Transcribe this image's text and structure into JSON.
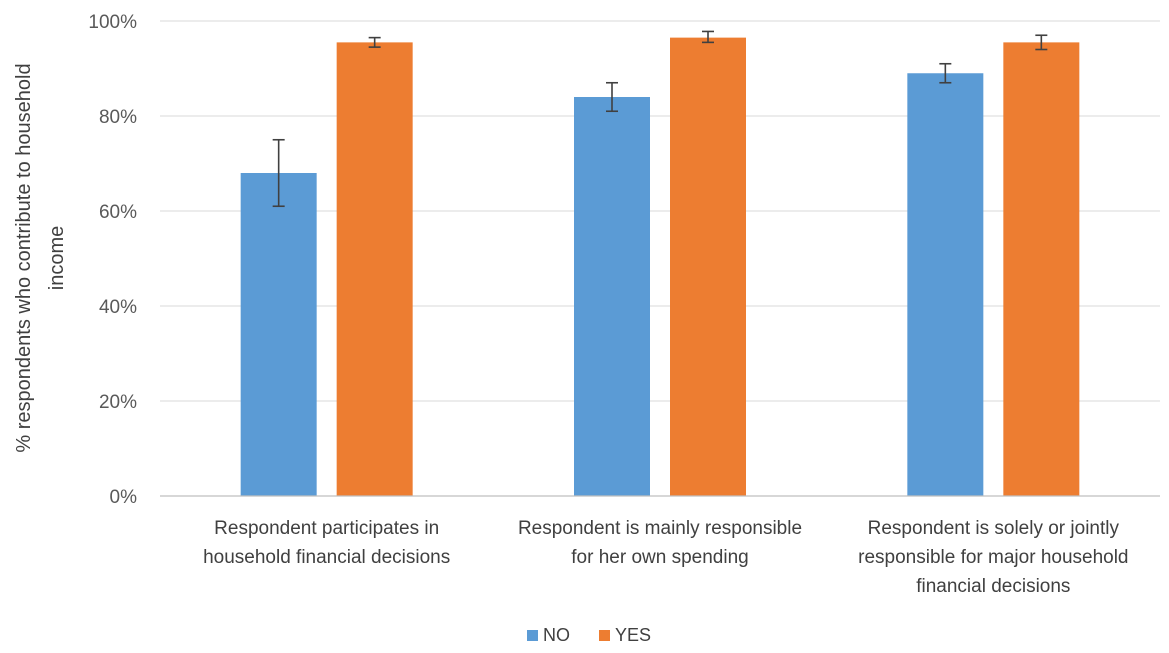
{
  "chart_data": {
    "type": "bar",
    "ylabel": "% respondents who contribute to household income",
    "ylabel_lines": [
      "% respondents who contribute to household",
      "income"
    ],
    "ylim": [
      0,
      100
    ],
    "yticks": [
      0,
      20,
      40,
      60,
      80,
      100
    ],
    "ytick_labels": [
      "0%",
      "20%",
      "40%",
      "60%",
      "80%",
      "100%"
    ],
    "grid": true,
    "legend_position": "bottom",
    "categories": [
      "Respondent participates in household financial decisions",
      "Respondent is mainly responsible for her own spending",
      "Respondent is solely or jointly responsible for major household financial decisions"
    ],
    "category_lines": [
      [
        "Respondent participates in",
        "household financial decisions"
      ],
      [
        "Respondent is mainly responsible",
        "for her own spending"
      ],
      [
        "Respondent is solely or jointly",
        "responsible for major household",
        "financial decisions"
      ]
    ],
    "series": [
      {
        "name": "NO",
        "color": "#5b9bd5",
        "values": [
          68,
          84,
          89
        ],
        "error_low": [
          61,
          81,
          87
        ],
        "error_high": [
          75,
          87,
          91
        ]
      },
      {
        "name": "YES",
        "color": "#ed7d31",
        "values": [
          95.5,
          96.5,
          95.5
        ],
        "error_low": [
          94.5,
          95.5,
          94
        ],
        "error_high": [
          96.5,
          97.8,
          97
        ]
      }
    ]
  }
}
